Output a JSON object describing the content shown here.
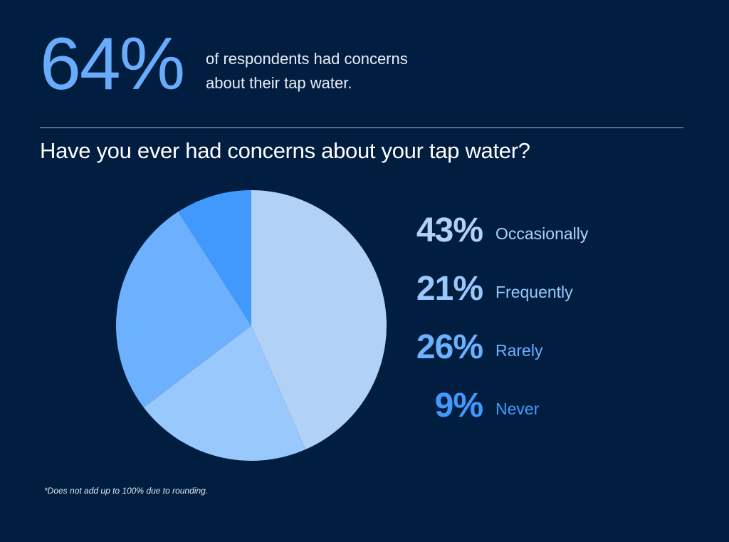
{
  "headline": {
    "value": "64%",
    "text_line1": "of respondents had concerns",
    "text_line2": "about their tap water."
  },
  "question": "Have you ever had concerns about your tap water?",
  "footnote": "*Does not add up to 100% due to rounding.",
  "colors": {
    "background": "#011e41",
    "occasionally": "#b2d1f6",
    "frequently": "#99c8fd",
    "rarely": "#6cb0fe",
    "never": "#4299fd"
  },
  "legend": [
    {
      "pct": "43%",
      "label": "Occasionally",
      "color": "#b2d1f6"
    },
    {
      "pct": "21%",
      "label": "Frequently",
      "color": "#99c8fd"
    },
    {
      "pct": "26%",
      "label": "Rarely",
      "color": "#6cb0fe"
    },
    {
      "pct": "9%",
      "label": "Never",
      "color": "#4299fd"
    }
  ],
  "chart_data": {
    "type": "pie",
    "title": "Have you ever had concerns about your tap water?",
    "categories": [
      "Occasionally",
      "Frequently",
      "Rarely",
      "Never"
    ],
    "values": [
      43,
      21,
      26,
      9
    ],
    "unit": "%",
    "start_angle": "12 o'clock, clockwise",
    "legend_position": "right",
    "annotations": [
      "64% of respondents had concerns about their tap water.",
      "*Does not add up to 100% due to rounding."
    ]
  }
}
